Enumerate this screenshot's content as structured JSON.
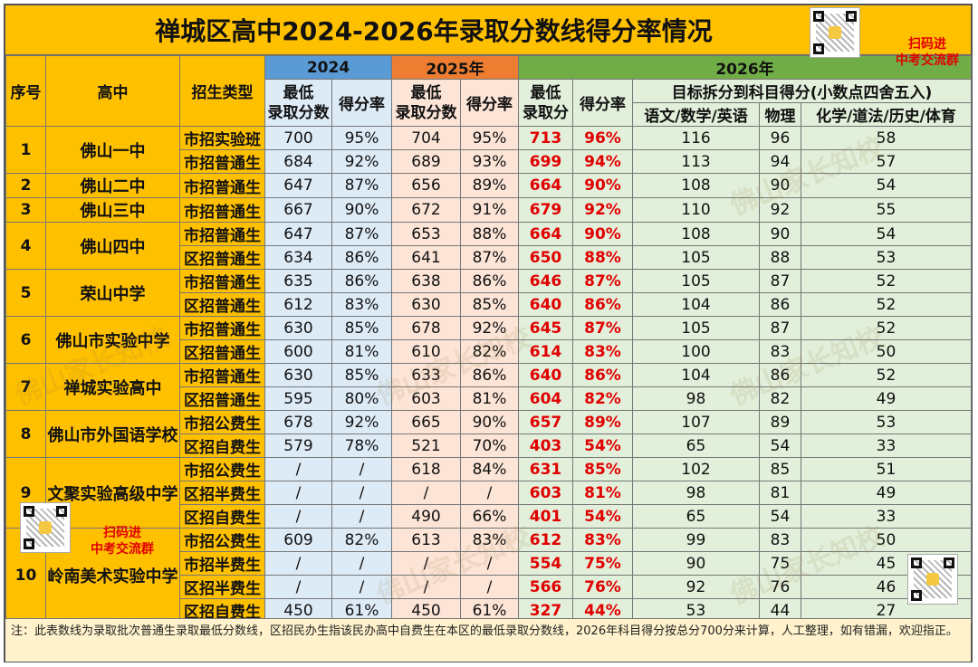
{
  "title": "禅城区高中2024-2026年录取分数线得分率情况",
  "header": {
    "seq": "序号",
    "school": "高中",
    "type": "招生类型",
    "y2024": "2024",
    "y2025": "2025年",
    "y2026": "2026年",
    "min_score": "最低\n录取分数",
    "min_score_2026": "最低\n录取分",
    "rate": "得分率",
    "breakdown": "目标拆分到科目得分(小数点四舍五入)",
    "sub_main": "语文/数学/英语",
    "sub_phys": "物理",
    "sub_other": "化学/道法/历史/体育"
  },
  "schools": [
    {
      "seq": "1",
      "name": "佛山一中",
      "rows": [
        {
          "type": "市招实验班",
          "s24": "700",
          "r24": "95%",
          "s25": "704",
          "r25": "95%",
          "s26": "713",
          "r26": "96%",
          "main": "116",
          "phys": "96",
          "other": "58"
        },
        {
          "type": "市招普通生",
          "s24": "684",
          "r24": "92%",
          "s25": "689",
          "r25": "93%",
          "s26": "699",
          "r26": "94%",
          "main": "113",
          "phys": "94",
          "other": "57"
        }
      ]
    },
    {
      "seq": "2",
      "name": "佛山二中",
      "rows": [
        {
          "type": "市招普通生",
          "s24": "647",
          "r24": "87%",
          "s25": "656",
          "r25": "89%",
          "s26": "664",
          "r26": "90%",
          "main": "108",
          "phys": "90",
          "other": "54"
        }
      ]
    },
    {
      "seq": "3",
      "name": "佛山三中",
      "rows": [
        {
          "type": "市招普通生",
          "s24": "667",
          "r24": "90%",
          "s25": "672",
          "r25": "91%",
          "s26": "679",
          "r26": "92%",
          "main": "110",
          "phys": "92",
          "other": "55"
        }
      ]
    },
    {
      "seq": "4",
      "name": "佛山四中",
      "rows": [
        {
          "type": "市招普通生",
          "s24": "647",
          "r24": "87%",
          "s25": "653",
          "r25": "88%",
          "s26": "664",
          "r26": "90%",
          "main": "108",
          "phys": "90",
          "other": "54"
        },
        {
          "type": "区招普通生",
          "s24": "634",
          "r24": "86%",
          "s25": "641",
          "r25": "87%",
          "s26": "650",
          "r26": "88%",
          "main": "105",
          "phys": "88",
          "other": "53"
        }
      ]
    },
    {
      "seq": "5",
      "name": "荣山中学",
      "rows": [
        {
          "type": "市招普通生",
          "s24": "635",
          "r24": "86%",
          "s25": "638",
          "r25": "86%",
          "s26": "646",
          "r26": "87%",
          "main": "105",
          "phys": "87",
          "other": "52"
        },
        {
          "type": "区招普通生",
          "s24": "612",
          "r24": "83%",
          "s25": "630",
          "r25": "85%",
          "s26": "640",
          "r26": "86%",
          "main": "104",
          "phys": "86",
          "other": "52"
        }
      ]
    },
    {
      "seq": "6",
      "name": "佛山市实验中学",
      "rows": [
        {
          "type": "市招普通生",
          "s24": "630",
          "r24": "85%",
          "s25": "678",
          "r25": "92%",
          "s26": "645",
          "r26": "87%",
          "main": "105",
          "phys": "87",
          "other": "52"
        },
        {
          "type": "区招普通生",
          "s24": "600",
          "r24": "81%",
          "s25": "610",
          "r25": "82%",
          "s26": "614",
          "r26": "83%",
          "main": "100",
          "phys": "83",
          "other": "50"
        }
      ]
    },
    {
      "seq": "7",
      "name": "禅城实验高中",
      "rows": [
        {
          "type": "市招普通生",
          "s24": "630",
          "r24": "85%",
          "s25": "633",
          "r25": "86%",
          "s26": "640",
          "r26": "86%",
          "main": "104",
          "phys": "86",
          "other": "52"
        },
        {
          "type": "区招普通生",
          "s24": "595",
          "r24": "80%",
          "s25": "603",
          "r25": "81%",
          "s26": "604",
          "r26": "82%",
          "main": "98",
          "phys": "82",
          "other": "49"
        }
      ]
    },
    {
      "seq": "8",
      "name": "佛山市外国语学校",
      "rows": [
        {
          "type": "市招公费生",
          "s24": "678",
          "r24": "92%",
          "s25": "665",
          "r25": "90%",
          "s26": "657",
          "r26": "89%",
          "main": "107",
          "phys": "89",
          "other": "53"
        },
        {
          "type": "区招自费生",
          "s24": "579",
          "r24": "78%",
          "s25": "521",
          "r25": "70%",
          "s26": "403",
          "r26": "54%",
          "main": "65",
          "phys": "54",
          "other": "33"
        }
      ]
    },
    {
      "seq": "9",
      "name": "文聚实验高级中学",
      "rows": [
        {
          "type": "市招公费生",
          "s24": "/",
          "r24": "/",
          "s25": "618",
          "r25": "84%",
          "s26": "631",
          "r26": "85%",
          "main": "102",
          "phys": "85",
          "other": "51"
        },
        {
          "type": "区招半费生",
          "s24": "/",
          "r24": "/",
          "s25": "/",
          "r25": "/",
          "s26": "603",
          "r26": "81%",
          "main": "98",
          "phys": "81",
          "other": "49"
        },
        {
          "type": "区招自费生",
          "s24": "/",
          "r24": "/",
          "s25": "490",
          "r25": "66%",
          "s26": "401",
          "r26": "54%",
          "main": "65",
          "phys": "54",
          "other": "33"
        }
      ]
    },
    {
      "seq": "10",
      "name": "岭南美术实验中学",
      "rows": [
        {
          "type": "市招公费生",
          "s24": "609",
          "r24": "82%",
          "s25": "613",
          "r25": "83%",
          "s26": "612",
          "r26": "83%",
          "main": "99",
          "phys": "83",
          "other": "50"
        },
        {
          "type": "市招半费生",
          "s24": "/",
          "r24": "/",
          "s25": "/",
          "r25": "/",
          "s26": "554",
          "r26": "75%",
          "main": "90",
          "phys": "75",
          "other": "45"
        },
        {
          "type": "区招半费生",
          "s24": "/",
          "r24": "/",
          "s25": "/",
          "r25": "/",
          "s26": "566",
          "r26": "76%",
          "main": "92",
          "phys": "76",
          "other": "46"
        },
        {
          "type": "区招自费生",
          "s24": "450",
          "r24": "61%",
          "s25": "450",
          "r25": "61%",
          "s26": "327",
          "r26": "44%",
          "main": "53",
          "phys": "44",
          "other": "27"
        }
      ]
    }
  ],
  "footer": "注：此表数线为录取批次普通生录取最低分数线，区招民办生指该民办高中自费生在本区的最低录取分数线，2026年科目得分按总分700分来计算，人工整理，如有错漏，欢迎指正。",
  "qr_label_top": "扫码进\n中考交流群",
  "qr_label_left": "扫码进\n中考交流群",
  "watermark": "佛山家长知校",
  "colors": {
    "title_bg": "#FFC000",
    "y2024": "#5B9BD5",
    "y2025": "#ED7D31",
    "y2026": "#70AD47",
    "highlight": "#E00000"
  }
}
